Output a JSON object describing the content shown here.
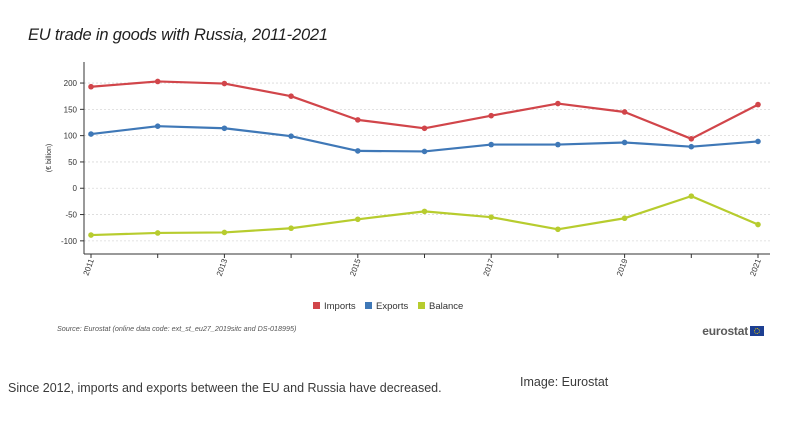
{
  "chart_title": "EU trade in goods with Russia, 2011-2021",
  "source_note": "Source: Eurostat (online data code: ext_st_eu27_2019sitc and DS-018995)",
  "brand": "eurostat",
  "caption": "Since 2012, imports and exports between the EU and Russia have decreased.",
  "credit": "Image: Eurostat",
  "chart_data": {
    "type": "line",
    "ylabel": "(€ billion)",
    "xlabel": "",
    "x": [
      2011,
      2012,
      2013,
      2014,
      2015,
      2016,
      2017,
      2018,
      2019,
      2020,
      2021
    ],
    "x_tick_labels": [
      "2011",
      "2013",
      "2015",
      "2017",
      "2019",
      "2021"
    ],
    "x_tick_values": [
      2011,
      2013,
      2015,
      2017,
      2019,
      2021
    ],
    "y_ticks": [
      200,
      150,
      100,
      50,
      0,
      -50,
      -100
    ],
    "ylim": [
      -125,
      240
    ],
    "grid": true,
    "legend_position": "bottom-center",
    "series": [
      {
        "name": "Imports",
        "color": "#d1454a",
        "values": [
          193,
          203,
          199,
          175,
          130,
          114,
          138,
          161,
          145,
          94,
          159
        ]
      },
      {
        "name": "Exports",
        "color": "#3f78b7",
        "values": [
          103,
          118,
          114,
          99,
          71,
          70,
          83,
          83,
          87,
          79,
          89
        ]
      },
      {
        "name": "Balance",
        "color": "#b7cc2e",
        "values": [
          -89,
          -85,
          -84,
          -76,
          -59,
          -44,
          -55,
          -78,
          -57,
          -15,
          -69
        ]
      }
    ]
  }
}
